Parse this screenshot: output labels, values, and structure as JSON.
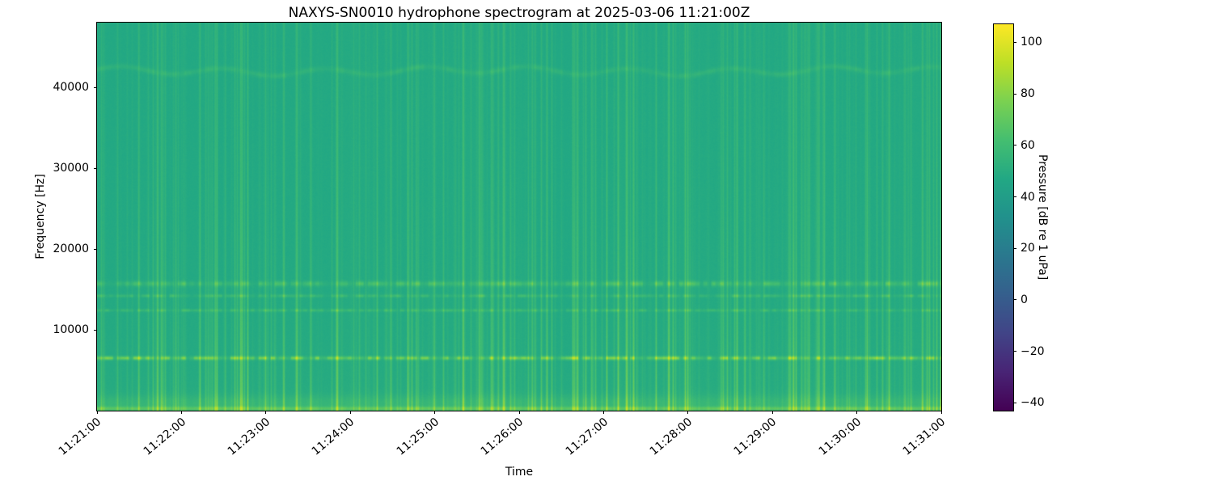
{
  "chart_data": {
    "type": "heatmap",
    "subtype": "spectrogram",
    "title": "NAXYS-SN0010 hydrophone spectrogram at 2025-03-06 11:21:00Z",
    "xlabel": "Time",
    "ylabel": "Frequency [Hz]",
    "x_tick_labels": [
      "11:21:00",
      "11:22:00",
      "11:23:00",
      "11:24:00",
      "11:25:00",
      "11:26:00",
      "11:27:00",
      "11:28:00",
      "11:29:00",
      "11:30:00",
      "11:31:00"
    ],
    "time_span_seconds": 600,
    "y_ticks": [
      10000,
      20000,
      30000,
      40000
    ],
    "ylim": [
      0,
      48000
    ],
    "colormap": "viridis",
    "clim": [
      -43,
      107
    ],
    "grid": false,
    "colorbar": {
      "label": "Pressure [dB re 1 uPa]",
      "ticks": [
        100,
        80,
        60,
        40,
        20,
        0,
        -20,
        -40
      ],
      "position": "right"
    },
    "background_level_db": 48,
    "tonal_bands": [
      {
        "center_hz": 6500,
        "sigma_hz": 160,
        "peak_db": 79,
        "texture": "dashed"
      },
      {
        "center_hz": 12400,
        "sigma_hz": 120,
        "peak_db": 61,
        "texture": "dashed"
      },
      {
        "center_hz": 14200,
        "sigma_hz": 130,
        "peak_db": 62,
        "texture": "dashed"
      },
      {
        "center_hz": 15700,
        "sigma_hz": 220,
        "peak_db": 65,
        "texture": "dashed"
      },
      {
        "center_hz": 42000,
        "sigma_hz": 240,
        "peak_db": 55,
        "texture": "faint-wavy"
      },
      {
        "center_hz": 250,
        "sigma_hz": 180,
        "peak_db": 66,
        "texture": "continuous"
      },
      {
        "center_hz": 900,
        "sigma_hz": 700,
        "peak_db": 56,
        "texture": "continuous"
      }
    ],
    "transients": {
      "description": "broadband vertical streaks from impulsive noise, strongest below ~16 kHz",
      "approx_count": 300,
      "excess_db_range": [
        2,
        20
      ]
    },
    "colors": {
      "plot_background_teal": "#22a884",
      "bright_band_green": "#aadc32",
      "figure_background": "#ffffff",
      "axis_color": "#000000"
    }
  }
}
